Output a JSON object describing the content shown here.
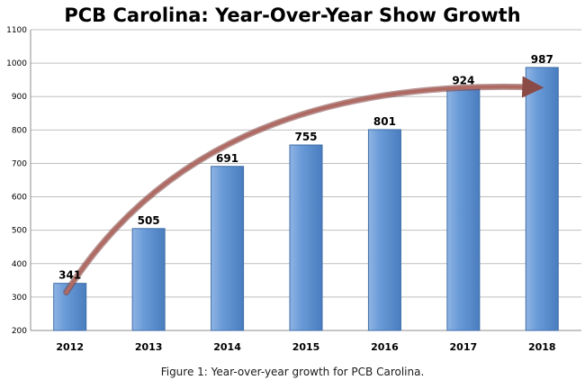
{
  "chart_data": {
    "type": "bar",
    "title": "PCB Carolina: Year-Over-Year Show Growth",
    "categories": [
      "2012",
      "2013",
      "2014",
      "2015",
      "2016",
      "2017",
      "2018"
    ],
    "values": [
      341,
      505,
      691,
      755,
      801,
      924,
      987
    ],
    "data_labels": [
      "341",
      "505",
      "691",
      "755",
      "801",
      "924",
      "987"
    ],
    "ylim": [
      200,
      1100
    ],
    "yticks": [
      200,
      300,
      400,
      500,
      600,
      700,
      800,
      900,
      1000,
      1100
    ],
    "grid": true,
    "legend": "none",
    "trend_arrow": true,
    "colors": {
      "bar": "#5b8fd1",
      "bar_edge": "#3f6ea8",
      "arrow": "#b06a64",
      "grid": "#bfbfbf"
    }
  },
  "caption": "Figure 1: Year-over-year growth for PCB Carolina."
}
